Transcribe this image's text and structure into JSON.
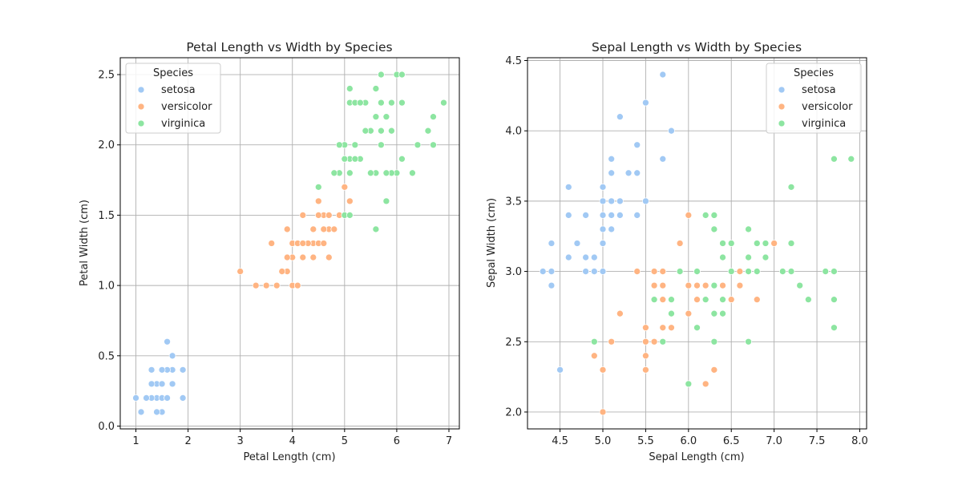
{
  "colors": {
    "setosa": "#a1c9f4",
    "versicolor": "#ffb482",
    "virginica": "#8de5a1",
    "grid": "#b0b0b0",
    "axis": "#000000"
  },
  "chart_data": [
    {
      "type": "scatter",
      "title": "Petal Length vs Width by Species",
      "xlabel": "Petal Length (cm)",
      "ylabel": "Petal Width (cm)",
      "xlim": [
        0.7,
        7.2
      ],
      "ylim": [
        -0.02,
        2.62
      ],
      "xticks": [
        1,
        2,
        3,
        4,
        5,
        6,
        7
      ],
      "xtick_labels": [
        "1",
        "2",
        "3",
        "4",
        "5",
        "6",
        "7"
      ],
      "yticks": [
        0.0,
        0.5,
        1.0,
        1.5,
        2.0,
        2.5
      ],
      "ytick_labels": [
        "0.0",
        "0.5",
        "1.0",
        "1.5",
        "2.0",
        "2.5"
      ],
      "grid": true,
      "legend": {
        "title": "Species",
        "loc": "upper left"
      },
      "series": [
        {
          "name": "setosa",
          "points": [
            [
              1.4,
              0.2
            ],
            [
              1.3,
              0.2
            ],
            [
              1.5,
              0.2
            ],
            [
              1.7,
              0.4
            ],
            [
              1.4,
              0.3
            ],
            [
              1.5,
              0.1
            ],
            [
              1.6,
              0.2
            ],
            [
              1.1,
              0.1
            ],
            [
              1.2,
              0.2
            ],
            [
              1.3,
              0.4
            ],
            [
              1.0,
              0.2
            ],
            [
              1.7,
              0.5
            ],
            [
              1.9,
              0.2
            ],
            [
              1.6,
              0.4
            ],
            [
              1.9,
              0.4
            ],
            [
              1.6,
              0.6
            ],
            [
              1.4,
              0.1
            ],
            [
              1.5,
              0.4
            ],
            [
              1.7,
              0.3
            ],
            [
              1.3,
              0.3
            ],
            [
              1.6,
              0.2
            ],
            [
              1.5,
              0.3
            ]
          ]
        },
        {
          "name": "versicolor",
          "points": [
            [
              4.7,
              1.4
            ],
            [
              4.5,
              1.5
            ],
            [
              4.9,
              1.5
            ],
            [
              4.0,
              1.3
            ],
            [
              4.6,
              1.5
            ],
            [
              3.3,
              1.0
            ],
            [
              4.4,
              1.4
            ],
            [
              3.9,
              1.4
            ],
            [
              3.5,
              1.0
            ],
            [
              4.2,
              1.5
            ],
            [
              4.0,
              1.0
            ],
            [
              4.7,
              1.4
            ],
            [
              3.6,
              1.3
            ],
            [
              4.4,
              1.4
            ],
            [
              4.1,
              1.0
            ],
            [
              4.5,
              1.5
            ],
            [
              3.9,
              1.1
            ],
            [
              4.8,
              1.8
            ],
            [
              4.9,
              1.5
            ],
            [
              4.7,
              1.2
            ],
            [
              4.3,
              1.3
            ],
            [
              5.0,
              1.7
            ],
            [
              3.8,
              1.1
            ],
            [
              3.7,
              1.0
            ],
            [
              5.1,
              1.6
            ],
            [
              4.5,
              1.6
            ],
            [
              4.7,
              1.5
            ],
            [
              4.4,
              1.3
            ],
            [
              4.1,
              1.3
            ],
            [
              4.0,
              1.2
            ],
            [
              4.4,
              1.2
            ],
            [
              4.6,
              1.4
            ],
            [
              3.0,
              1.1
            ],
            [
              4.2,
              1.3
            ],
            [
              4.2,
              1.2
            ],
            [
              4.3,
              1.3
            ],
            [
              3.9,
              1.2
            ],
            [
              4.5,
              1.3
            ],
            [
              4.8,
              1.4
            ],
            [
              4.6,
              1.3
            ],
            [
              4.1,
              1.3
            ],
            [
              4.2,
              1.3
            ]
          ]
        },
        {
          "name": "virginica",
          "points": [
            [
              6.0,
              2.5
            ],
            [
              5.1,
              1.9
            ],
            [
              5.9,
              2.1
            ],
            [
              5.6,
              1.8
            ],
            [
              5.8,
              2.2
            ],
            [
              6.6,
              2.1
            ],
            [
              4.5,
              1.7
            ],
            [
              6.3,
              1.8
            ],
            [
              6.1,
              2.5
            ],
            [
              5.3,
              1.9
            ],
            [
              5.5,
              2.1
            ],
            [
              5.0,
              2.0
            ],
            [
              5.1,
              2.4
            ],
            [
              5.5,
              1.8
            ],
            [
              6.7,
              2.2
            ],
            [
              6.9,
              2.3
            ],
            [
              5.0,
              1.5
            ],
            [
              5.7,
              2.3
            ],
            [
              4.9,
              2.0
            ],
            [
              6.7,
              2.0
            ],
            [
              4.9,
              1.8
            ],
            [
              5.7,
              2.1
            ],
            [
              6.0,
              1.8
            ],
            [
              4.8,
              1.8
            ],
            [
              5.8,
              1.6
            ],
            [
              6.1,
              1.9
            ],
            [
              6.4,
              2.0
            ],
            [
              5.6,
              2.2
            ],
            [
              5.1,
              1.5
            ],
            [
              5.6,
              1.4
            ],
            [
              6.1,
              2.3
            ],
            [
              5.6,
              2.4
            ],
            [
              5.5,
              1.8
            ],
            [
              5.4,
              2.1
            ],
            [
              5.1,
              2.3
            ],
            [
              5.9,
              2.3
            ],
            [
              5.7,
              2.5
            ],
            [
              5.2,
              2.3
            ],
            [
              5.2,
              2.0
            ],
            [
              5.4,
              2.3
            ],
            [
              5.1,
              1.8
            ],
            [
              5.2,
              1.9
            ],
            [
              5.0,
              1.9
            ],
            [
              5.3,
              2.3
            ],
            [
              5.9,
              1.8
            ],
            [
              6.1,
              2.3
            ],
            [
              5.0,
              1.9
            ],
            [
              5.2,
              2.0
            ],
            [
              5.8,
              1.8
            ],
            [
              5.7,
              2.0
            ]
          ]
        }
      ]
    },
    {
      "type": "scatter",
      "title": "Sepal Length vs Width by Species",
      "xlabel": "Sepal Length (cm)",
      "ylabel": "Sepal Width (cm)",
      "xlim": [
        4.12,
        8.08
      ],
      "ylim": [
        1.88,
        4.52
      ],
      "xticks": [
        4.5,
        5.0,
        5.5,
        6.0,
        6.5,
        7.0,
        7.5,
        8.0
      ],
      "xtick_labels": [
        "4.5",
        "5.0",
        "5.5",
        "6.0",
        "6.5",
        "7.0",
        "7.5",
        "8.0"
      ],
      "yticks": [
        2.0,
        2.5,
        3.0,
        3.5,
        4.0,
        4.5
      ],
      "ytick_labels": [
        "2.0",
        "2.5",
        "3.0",
        "3.5",
        "4.0",
        "4.5"
      ],
      "grid": true,
      "legend": {
        "title": "Species",
        "loc": "upper right"
      },
      "series": [
        {
          "name": "setosa",
          "points": [
            [
              5.1,
              3.5
            ],
            [
              4.9,
              3.0
            ],
            [
              4.7,
              3.2
            ],
            [
              4.6,
              3.1
            ],
            [
              5.0,
              3.6
            ],
            [
              5.4,
              3.9
            ],
            [
              4.6,
              3.4
            ],
            [
              5.0,
              3.4
            ],
            [
              4.4,
              2.9
            ],
            [
              5.4,
              3.7
            ],
            [
              4.8,
              3.4
            ],
            [
              4.8,
              3.0
            ],
            [
              4.3,
              3.0
            ],
            [
              5.8,
              4.0
            ],
            [
              5.7,
              4.4
            ],
            [
              5.4,
              3.4
            ],
            [
              5.1,
              3.8
            ],
            [
              5.7,
              3.8
            ],
            [
              5.1,
              3.7
            ],
            [
              5.2,
              4.1
            ],
            [
              5.5,
              4.2
            ],
            [
              4.9,
              3.1
            ],
            [
              5.0,
              3.2
            ],
            [
              5.5,
              3.5
            ],
            [
              4.4,
              3.0
            ],
            [
              5.0,
              3.5
            ],
            [
              4.5,
              2.3
            ],
            [
              4.4,
              3.2
            ],
            [
              4.8,
              3.1
            ],
            [
              5.3,
              3.7
            ],
            [
              5.0,
              3.3
            ],
            [
              5.1,
              3.4
            ],
            [
              5.2,
              3.5
            ],
            [
              5.1,
              3.3
            ],
            [
              4.6,
              3.6
            ],
            [
              5.0,
              3.0
            ],
            [
              5.2,
              3.4
            ]
          ]
        },
        {
          "name": "versicolor",
          "points": [
            [
              7.0,
              3.2
            ],
            [
              6.4,
              3.2
            ],
            [
              6.9,
              3.1
            ],
            [
              5.5,
              2.3
            ],
            [
              6.5,
              2.8
            ],
            [
              5.7,
              2.8
            ],
            [
              6.3,
              3.3
            ],
            [
              4.9,
              2.4
            ],
            [
              6.6,
              2.9
            ],
            [
              5.2,
              2.7
            ],
            [
              5.0,
              2.0
            ],
            [
              5.9,
              3.0
            ],
            [
              6.0,
              2.2
            ],
            [
              6.1,
              2.9
            ],
            [
              5.6,
              2.9
            ],
            [
              6.7,
              3.1
            ],
            [
              5.6,
              3.0
            ],
            [
              5.8,
              2.7
            ],
            [
              6.2,
              2.2
            ],
            [
              5.6,
              2.5
            ],
            [
              5.9,
              3.2
            ],
            [
              6.1,
              2.8
            ],
            [
              6.3,
              2.5
            ],
            [
              6.4,
              2.9
            ],
            [
              6.8,
              2.8
            ],
            [
              6.7,
              3.0
            ],
            [
              6.0,
              2.9
            ],
            [
              5.7,
              2.6
            ],
            [
              5.5,
              2.4
            ],
            [
              5.8,
              2.7
            ],
            [
              6.0,
              2.7
            ],
            [
              5.4,
              3.0
            ],
            [
              6.0,
              3.4
            ],
            [
              6.3,
              2.3
            ],
            [
              5.5,
              2.5
            ],
            [
              5.5,
              2.6
            ],
            [
              6.1,
              3.0
            ],
            [
              5.0,
              2.3
            ],
            [
              5.7,
              3.0
            ],
            [
              5.7,
              2.9
            ],
            [
              6.2,
              2.9
            ],
            [
              5.1,
              2.5
            ],
            [
              6.6,
              3.0
            ],
            [
              5.8,
              2.6
            ],
            [
              6.3,
              2.9
            ]
          ]
        },
        {
          "name": "virginica",
          "points": [
            [
              6.3,
              3.3
            ],
            [
              5.8,
              2.7
            ],
            [
              7.1,
              3.0
            ],
            [
              6.5,
              3.0
            ],
            [
              7.6,
              3.0
            ],
            [
              4.9,
              2.5
            ],
            [
              7.3,
              2.9
            ],
            [
              6.7,
              2.5
            ],
            [
              7.2,
              3.6
            ],
            [
              6.4,
              2.7
            ],
            [
              6.8,
              3.0
            ],
            [
              5.7,
              2.5
            ],
            [
              5.8,
              2.8
            ],
            [
              6.4,
              3.2
            ],
            [
              7.7,
              3.8
            ],
            [
              7.7,
              2.6
            ],
            [
              6.0,
              2.2
            ],
            [
              6.9,
              3.2
            ],
            [
              5.6,
              2.8
            ],
            [
              7.7,
              2.8
            ],
            [
              6.3,
              2.7
            ],
            [
              6.7,
              3.3
            ],
            [
              7.2,
              3.2
            ],
            [
              6.2,
              2.8
            ],
            [
              6.1,
              3.0
            ],
            [
              6.4,
              2.8
            ],
            [
              7.2,
              3.0
            ],
            [
              7.4,
              2.8
            ],
            [
              7.9,
              3.8
            ],
            [
              6.1,
              2.6
            ],
            [
              7.7,
              3.0
            ],
            [
              6.3,
              3.4
            ],
            [
              6.4,
              3.1
            ],
            [
              6.9,
              3.1
            ],
            [
              6.7,
              3.1
            ],
            [
              5.8,
              2.7
            ],
            [
              6.8,
              3.2
            ],
            [
              6.7,
              3.0
            ],
            [
              6.5,
              3.0
            ],
            [
              6.2,
              3.4
            ],
            [
              5.9,
              3.0
            ],
            [
              6.3,
              2.5
            ],
            [
              6.3,
              2.9
            ],
            [
              7.3,
              2.9
            ],
            [
              6.5,
              3.2
            ]
          ]
        }
      ]
    }
  ]
}
